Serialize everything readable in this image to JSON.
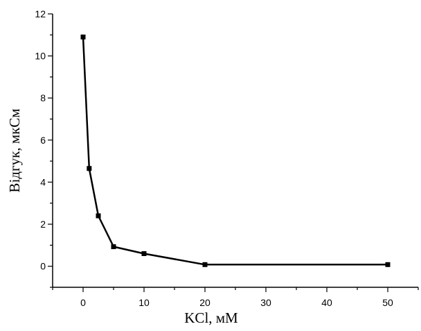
{
  "chart_data": {
    "type": "line",
    "title": "",
    "xlabel": "KCl, мМ",
    "ylabel": "Відгук, мкСм",
    "xlim": [
      -5,
      55
    ],
    "ylim": [
      -1,
      12
    ],
    "x_ticks": [
      0,
      10,
      20,
      30,
      40,
      50
    ],
    "y_ticks": [
      0,
      2,
      4,
      6,
      8,
      10,
      12
    ],
    "grid": false,
    "legend": "none",
    "series": [
      {
        "x": [
          0,
          1,
          2.5,
          5,
          10,
          20,
          50
        ],
        "y": [
          10.9,
          4.65,
          2.4,
          0.93,
          0.6,
          0.08,
          0.08
        ]
      }
    ],
    "line_color": "#000000",
    "marker": "square"
  }
}
